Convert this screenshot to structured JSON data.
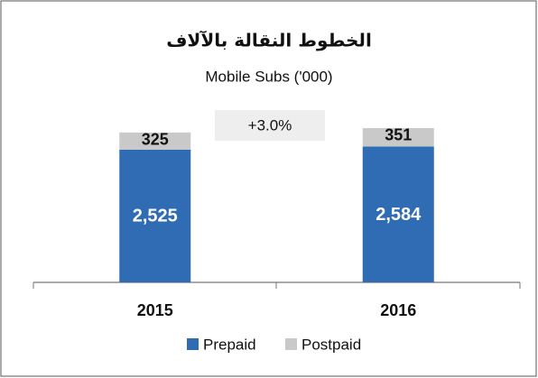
{
  "chart_data": {
    "type": "stacked_bar",
    "title": "الخطوط النقالة بالآلاف",
    "subtitle": "Mobile Subs ('000)",
    "annotation": "+3.0%",
    "categories": [
      "2015",
      "2016"
    ],
    "series": [
      {
        "name": "Prepaid",
        "color": "#2f6cb4",
        "values": [
          2525,
          2584
        ],
        "value_labels": [
          "2,525",
          "2,584"
        ]
      },
      {
        "name": "Postpaid",
        "color": "#c9c9c9",
        "values": [
          325,
          351
        ]
      }
    ],
    "ylim": [
      0,
      3500
    ],
    "legend": "bottom"
  }
}
